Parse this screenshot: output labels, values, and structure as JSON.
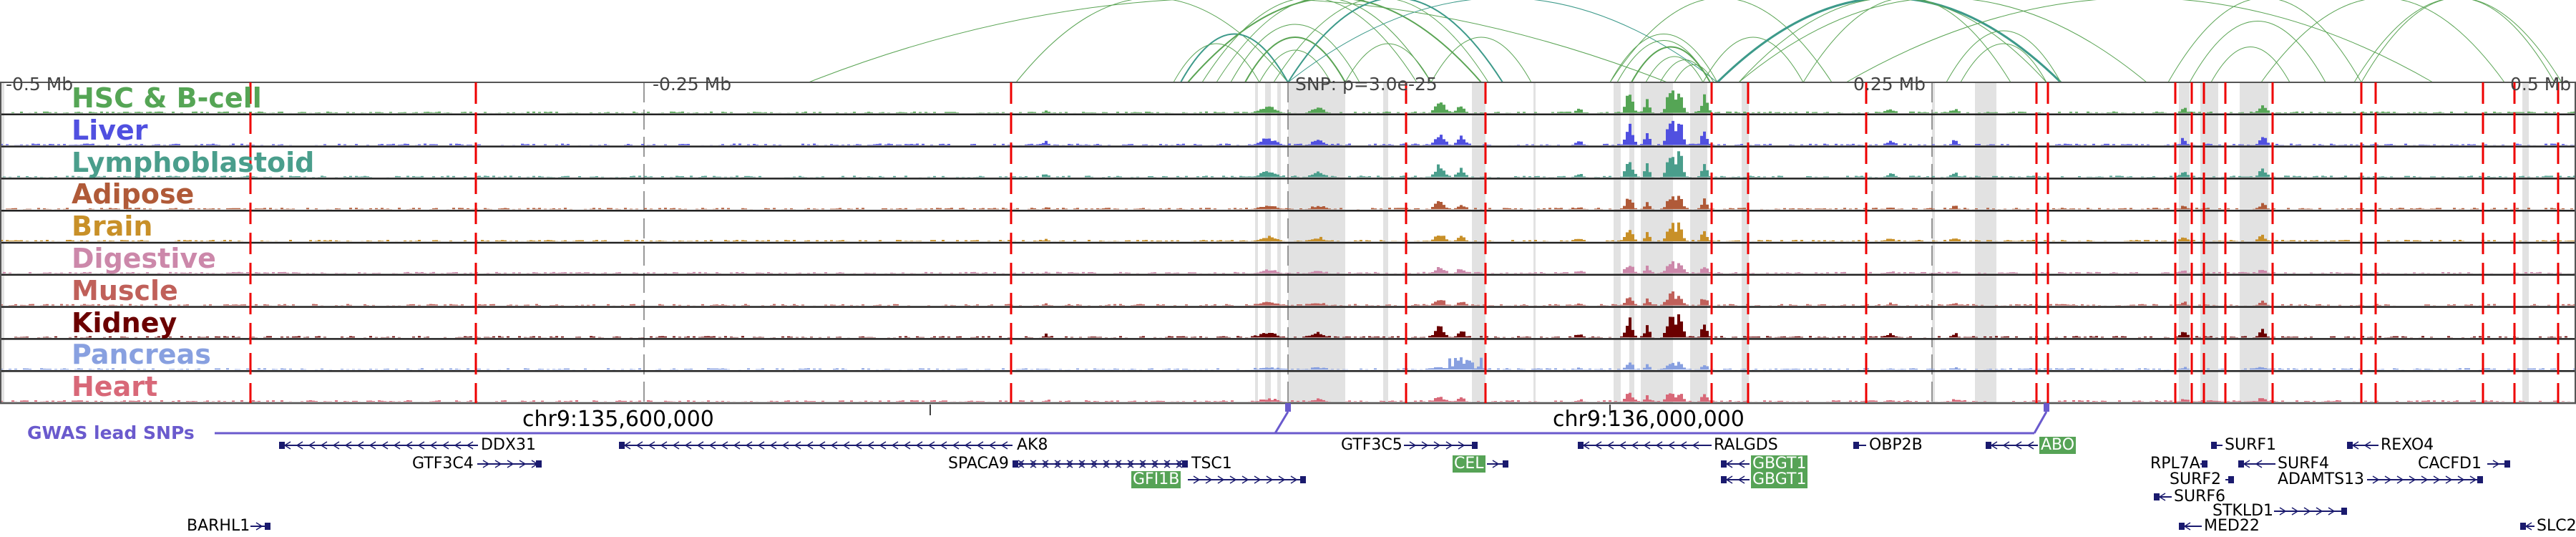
{
  "axis": {
    "left": "-0.5 Mb",
    "left_mid": "-0.25 Mb",
    "snp": "SNP: p=3.0e-25",
    "right_mid": "0.25 Mb",
    "right": "0.5 Mb"
  },
  "tracks": [
    {
      "label": "HSC & B-cell",
      "color": "#55a555"
    },
    {
      "label": "Liver",
      "color": "#5050e0"
    },
    {
      "label": "Lymphoblastoid",
      "color": "#4a9e8c"
    },
    {
      "label": "Adipose",
      "color": "#b05a38"
    },
    {
      "label": "Brain",
      "color": "#c89028"
    },
    {
      "label": "Digestive",
      "color": "#cc88aa"
    },
    {
      "label": "Muscle",
      "color": "#c0605a"
    },
    {
      "label": "Kidney",
      "color": "#6b0000"
    },
    {
      "label": "Pancreas",
      "color": "#88a0e0"
    },
    {
      "label": "Heart",
      "color": "#d86878"
    }
  ],
  "coords": {
    "c1": "chr9:135,600,000",
    "c2": "chr9:136,000,000"
  },
  "gwas_label": "GWAS lead SNPs",
  "genes": [
    {
      "name": "DDX31",
      "strand": "-",
      "highlight": false
    },
    {
      "name": "GTF3C4",
      "strand": "+",
      "highlight": false
    },
    {
      "name": "BARHL1",
      "strand": "+",
      "highlight": false
    },
    {
      "name": "AK8",
      "strand": "-",
      "highlight": false
    },
    {
      "name": "SPACA9",
      "strand": "+",
      "highlight": false
    },
    {
      "name": "TSC1",
      "strand": "-",
      "highlight": false
    },
    {
      "name": "GFI1B",
      "strand": "+",
      "highlight": true
    },
    {
      "name": "GTF3C5",
      "strand": "+",
      "highlight": false
    },
    {
      "name": "CEL",
      "strand": "+",
      "highlight": true
    },
    {
      "name": "RALGDS",
      "strand": "-",
      "highlight": false
    },
    {
      "name": "GBGT1",
      "strand": "-",
      "highlight": true
    },
    {
      "name": "GBGT1",
      "strand": "-",
      "highlight": true
    },
    {
      "name": "OBP2B",
      "strand": "-",
      "highlight": false
    },
    {
      "name": "ABO",
      "strand": "-",
      "highlight": true
    },
    {
      "name": "SURF1",
      "strand": "-",
      "highlight": false
    },
    {
      "name": "REXO4",
      "strand": "-",
      "highlight": false
    },
    {
      "name": "RPL7A",
      "strand": "+",
      "highlight": false
    },
    {
      "name": "SURF4",
      "strand": "-",
      "highlight": false
    },
    {
      "name": "CACFD1",
      "strand": "+",
      "highlight": false
    },
    {
      "name": "SURF2",
      "strand": "+",
      "highlight": false
    },
    {
      "name": "ADAMTS13",
      "strand": "+",
      "highlight": false
    },
    {
      "name": "SURF6",
      "strand": "-",
      "highlight": false
    },
    {
      "name": "STKLD1",
      "strand": "+",
      "highlight": false
    },
    {
      "name": "MED22",
      "strand": "-",
      "highlight": false
    },
    {
      "name": "SLC2",
      "strand": "-",
      "highlight": false
    }
  ],
  "colors": {
    "arc_green": "#5aa454",
    "arc_teal": "#3d9a8a",
    "red_line": "#ee0000",
    "band": "#e2e2e2",
    "gene": "#1a1a6e",
    "gwas": "#6a5acd"
  }
}
